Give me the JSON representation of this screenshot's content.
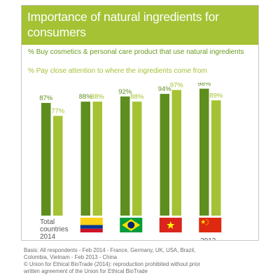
{
  "header": {
    "title": "Importance of natural ingredients for consumers"
  },
  "legend": [
    {
      "marker": "%",
      "label": "Buy cosmetics & personal care product that use natural ingredients",
      "color": "#5e8f1e"
    },
    {
      "marker": "%",
      "label": "Pay close attention to where the ingredients come from",
      "color": "#a4c234"
    }
  ],
  "chart_data": {
    "type": "bar",
    "categories": [
      "Total countries 2014",
      "Colombia",
      "Brazil",
      "Vietnam",
      "China"
    ],
    "category_label_lines": [
      "Total",
      "countries",
      "2014"
    ],
    "flags": [
      "colombia-flag-icon",
      "brazil-flag-icon",
      "vietnam-flag-icon",
      "china-flag-icon"
    ],
    "series": [
      {
        "name": "Buy cosmetics & personal care product that use natural ingredients",
        "values": [
          87,
          88,
          92,
          94,
          98
        ],
        "color": "#5e8f1e"
      },
      {
        "name": "Pay close attention to where the ingredients come from",
        "values": [
          77,
          88,
          88,
          97,
          89
        ],
        "color": "#a4c234"
      }
    ],
    "value_labels": [
      [
        "87%",
        "88%",
        "92%",
        "94%",
        "98%"
      ],
      [
        "77%",
        "88%",
        "88%",
        "97%",
        "89%"
      ]
    ],
    "annotation": "2013",
    "ylim": [
      0,
      100
    ],
    "grid": false,
    "legend_position": "top"
  },
  "footer": {
    "basis_lines": [
      "Basis: All respondents - Feb 2014 - France, Germany, UK, USA, Brazil,",
      "Colombia, Vietnam - Feb 2013 - China"
    ],
    "copyright_lines": [
      "© Union for Ethical BioTrade (2014): reproduction prohibited without prior",
      "written agreement of the Union for Ethical BioTrade"
    ]
  }
}
